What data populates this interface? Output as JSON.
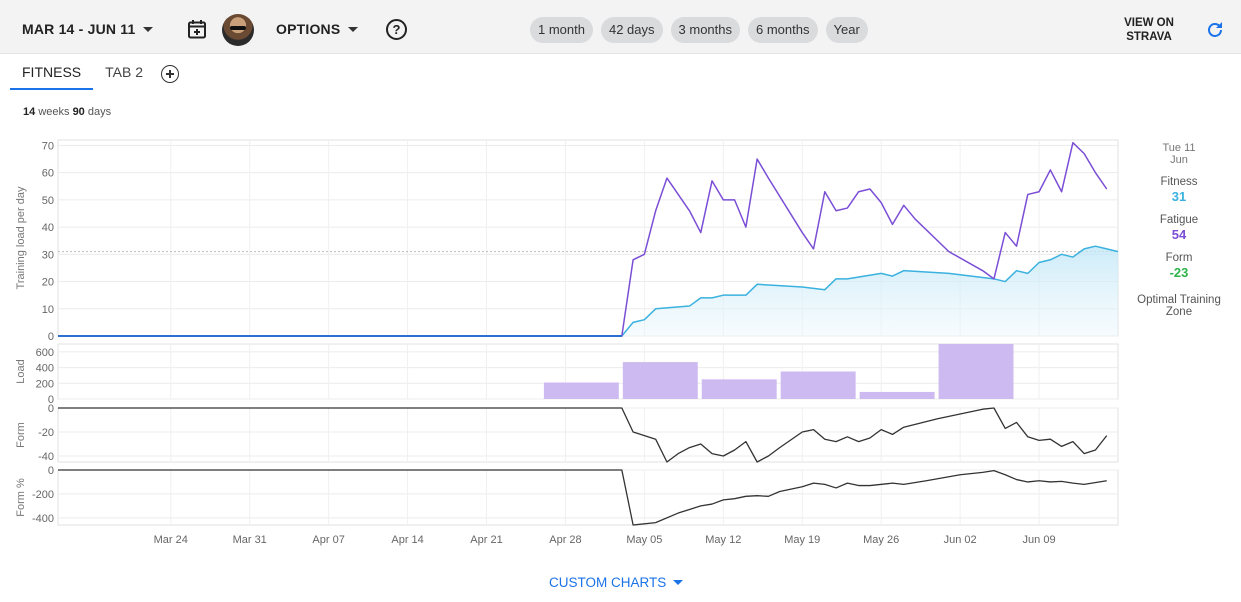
{
  "header": {
    "date_range": "MAR 14 - JUN 11",
    "options_label": "OPTIONS",
    "help_glyph": "?",
    "chips": [
      "1 month",
      "42 days",
      "3 months",
      "6 months",
      "Year"
    ],
    "view_strava": "VIEW ON STRAVA",
    "icons": [
      "calendar-add-icon",
      "avatar",
      "chevron-down-icon",
      "help-icon",
      "refresh-icon"
    ],
    "accent": "#1a73e8"
  },
  "tabs": [
    {
      "label": "FITNESS",
      "active": true
    },
    {
      "label": "TAB 2",
      "active": false
    }
  ],
  "span": {
    "weeks": "14",
    "weeks_word": "weeks",
    "days": "90",
    "days_word": "days"
  },
  "side_panel": {
    "date": "Tue 11 Jun",
    "fitness_label": "Fitness",
    "fitness_value": "31",
    "fitness_color": "#3ab1df",
    "fatigue_label": "Fatigue",
    "fatigue_value": "54",
    "fatigue_color": "#7b4ed6",
    "form_label": "Form",
    "form_value": "-23",
    "form_color": "#2fb34a",
    "zone_label": "Optimal Training Zone"
  },
  "custom_charts_label": "CUSTOM CHARTS",
  "chart_data": [
    {
      "type": "line",
      "ylabel": "Training load per day",
      "ylim": [
        0,
        72
      ],
      "yticks": [
        "70",
        "60",
        "50",
        "40",
        "30",
        "20",
        "10",
        "0"
      ],
      "x_day_range": [
        0,
        89
      ],
      "series": [
        {
          "name": "Fitness",
          "color": "#3ab1df",
          "points": [
            [
              0,
              0
            ],
            [
              50,
              0
            ],
            [
              51,
              5
            ],
            [
              52,
              6
            ],
            [
              53,
              10
            ],
            [
              56,
              11
            ],
            [
              57,
              14
            ],
            [
              58,
              14
            ],
            [
              59,
              15
            ],
            [
              61,
              15
            ],
            [
              62,
              19
            ],
            [
              66,
              18
            ],
            [
              68,
              17
            ],
            [
              69,
              21
            ],
            [
              70,
              21
            ],
            [
              73,
              23
            ],
            [
              74,
              22
            ],
            [
              75,
              24
            ],
            [
              79,
              23
            ],
            [
              83,
              21
            ],
            [
              84,
              20
            ],
            [
              85,
              24
            ],
            [
              86,
              23
            ],
            [
              87,
              27
            ],
            [
              88,
              28
            ],
            [
              89,
              30
            ],
            [
              90,
              29
            ],
            [
              91,
              32
            ],
            [
              92,
              33
            ],
            [
              93,
              32
            ],
            [
              94,
              31
            ]
          ]
        },
        {
          "name": "Fatigue",
          "color": "#7b4ed6",
          "points": [
            [
              0,
              0
            ],
            [
              50,
              0
            ],
            [
              51,
              28
            ],
            [
              52,
              30
            ],
            [
              53,
              46
            ],
            [
              54,
              58
            ],
            [
              55,
              52
            ],
            [
              56,
              46
            ],
            [
              57,
              38
            ],
            [
              58,
              57
            ],
            [
              59,
              50
            ],
            [
              60,
              50
            ],
            [
              61,
              40
            ],
            [
              62,
              65
            ],
            [
              63,
              58
            ],
            [
              66,
              38
            ],
            [
              67,
              32
            ],
            [
              68,
              53
            ],
            [
              69,
              46
            ],
            [
              70,
              47
            ],
            [
              71,
              53
            ],
            [
              72,
              54
            ],
            [
              73,
              49
            ],
            [
              74,
              41
            ],
            [
              75,
              48
            ],
            [
              76,
              43
            ],
            [
              79,
              31
            ],
            [
              82,
              24
            ],
            [
              83,
              21
            ],
            [
              84,
              38
            ],
            [
              85,
              33
            ],
            [
              86,
              52
            ],
            [
              87,
              53
            ],
            [
              88,
              61
            ],
            [
              89,
              53
            ],
            [
              90,
              71
            ],
            [
              91,
              67
            ],
            [
              92,
              60
            ],
            [
              93,
              54
            ]
          ]
        }
      ],
      "reference_line": 31
    },
    {
      "type": "bar",
      "ylabel": "Load",
      "ylim": [
        0,
        700
      ],
      "yticks": [
        "600",
        "400",
        "200",
        "0"
      ],
      "bars": [
        {
          "start": 43,
          "end": 50,
          "value": 210
        },
        {
          "start": 50,
          "end": 57,
          "value": 470
        },
        {
          "start": 57,
          "end": 64,
          "value": 250
        },
        {
          "start": 64,
          "end": 71,
          "value": 350
        },
        {
          "start": 71,
          "end": 78,
          "value": 90
        },
        {
          "start": 78,
          "end": 85,
          "value": 700
        }
      ],
      "color": "#cdbaf0"
    },
    {
      "type": "line",
      "ylabel": "Form",
      "ylim": [
        -45,
        0
      ],
      "yticks": [
        "0",
        "-20",
        "-40"
      ],
      "series": [
        {
          "name": "Form",
          "color": "#333333",
          "points": [
            [
              0,
              0
            ],
            [
              50,
              0
            ],
            [
              51,
              -20
            ],
            [
              52,
              -23
            ],
            [
              53,
              -26
            ],
            [
              54,
              -45
            ],
            [
              55,
              -38
            ],
            [
              56,
              -33
            ],
            [
              57,
              -30
            ],
            [
              58,
              -38
            ],
            [
              59,
              -40
            ],
            [
              60,
              -35
            ],
            [
              61,
              -28
            ],
            [
              62,
              -45
            ],
            [
              63,
              -40
            ],
            [
              64,
              -33
            ],
            [
              66,
              -20
            ],
            [
              67,
              -18
            ],
            [
              68,
              -26
            ],
            [
              69,
              -28
            ],
            [
              70,
              -24
            ],
            [
              71,
              -28
            ],
            [
              72,
              -25
            ],
            [
              73,
              -18
            ],
            [
              74,
              -22
            ],
            [
              75,
              -16
            ],
            [
              78,
              -9
            ],
            [
              80,
              -5
            ],
            [
              82,
              -1
            ],
            [
              83,
              0
            ],
            [
              84,
              -17
            ],
            [
              85,
              -12
            ],
            [
              86,
              -24
            ],
            [
              87,
              -27
            ],
            [
              88,
              -26
            ],
            [
              89,
              -32
            ],
            [
              90,
              -28
            ],
            [
              91,
              -38
            ],
            [
              92,
              -35
            ],
            [
              93,
              -23
            ]
          ]
        }
      ]
    },
    {
      "type": "line",
      "ylabel": "Form %",
      "ylim": [
        -460,
        0
      ],
      "yticks": [
        "0",
        "-200",
        "-400"
      ],
      "series": [
        {
          "name": "Form %",
          "color": "#333333",
          "points": [
            [
              0,
              0
            ],
            [
              50,
              0
            ],
            [
              51,
              -460
            ],
            [
              53,
              -440
            ],
            [
              55,
              -360
            ],
            [
              56,
              -330
            ],
            [
              57,
              -300
            ],
            [
              58,
              -285
            ],
            [
              59,
              -250
            ],
            [
              60,
              -240
            ],
            [
              61,
              -220
            ],
            [
              62,
              -215
            ],
            [
              63,
              -220
            ],
            [
              64,
              -180
            ],
            [
              66,
              -140
            ],
            [
              67,
              -110
            ],
            [
              68,
              -120
            ],
            [
              69,
              -150
            ],
            [
              70,
              -110
            ],
            [
              71,
              -130
            ],
            [
              72,
              -130
            ],
            [
              74,
              -110
            ],
            [
              75,
              -120
            ],
            [
              77,
              -90
            ],
            [
              80,
              -40
            ],
            [
              82,
              -20
            ],
            [
              83,
              -5
            ],
            [
              84,
              -40
            ],
            [
              85,
              -80
            ],
            [
              86,
              -100
            ],
            [
              87,
              -90
            ],
            [
              88,
              -100
            ],
            [
              89,
              -95
            ],
            [
              90,
              -110
            ],
            [
              91,
              -120
            ],
            [
              93,
              -90
            ]
          ]
        }
      ]
    }
  ],
  "x_axis": {
    "labels": [
      {
        "day": 10,
        "label": "Mar 24"
      },
      {
        "day": 17,
        "label": "Mar 31"
      },
      {
        "day": 24,
        "label": "Apr 07"
      },
      {
        "day": 31,
        "label": "Apr 14"
      },
      {
        "day": 38,
        "label": "Apr 21"
      },
      {
        "day": 45,
        "label": "Apr 28"
      },
      {
        "day": 52,
        "label": "May 05"
      },
      {
        "day": 59,
        "label": "May 12"
      },
      {
        "day": 66,
        "label": "May 19"
      },
      {
        "day": 73,
        "label": "May 26"
      },
      {
        "day": 80,
        "label": "Jun 02"
      },
      {
        "day": 87,
        "label": "Jun 09"
      }
    ]
  }
}
